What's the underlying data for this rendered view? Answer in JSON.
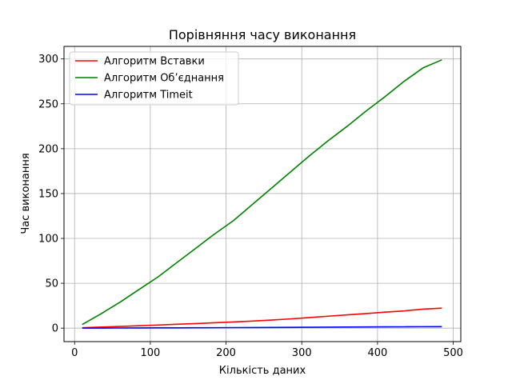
{
  "chart_data": {
    "type": "line",
    "title": "Порівняння часу виконання",
    "xlabel": "Кількість даних",
    "ylabel": "Час виконання",
    "xlim": [
      -14,
      510
    ],
    "ylim": [
      -15,
      314
    ],
    "xticks": [
      0,
      100,
      200,
      300,
      400,
      500
    ],
    "yticks": [
      0,
      50,
      100,
      150,
      200,
      250,
      300
    ],
    "grid": true,
    "legend_position": "top-left",
    "x": [
      10,
      35,
      60,
      85,
      110,
      135,
      160,
      185,
      210,
      235,
      260,
      285,
      310,
      335,
      360,
      385,
      410,
      435,
      460,
      485
    ],
    "series": [
      {
        "name": "Алгоритм Вставки",
        "color": "#ff0000",
        "values": [
          0.5,
          1.2,
          1.9,
          2.7,
          3.5,
          4.3,
          5.1,
          6.0,
          6.9,
          7.9,
          9.0,
          10.3,
          11.8,
          13.3,
          14.8,
          16.3,
          17.8,
          19.2,
          21.2,
          22.3
        ]
      },
      {
        "name": "Алгоритм Об’єднання",
        "color": "#008000",
        "values": [
          4,
          16,
          29,
          43,
          57,
          73,
          89,
          105,
          120,
          138,
          156,
          174,
          192,
          209,
          225,
          242,
          258,
          275,
          290,
          299
        ]
      },
      {
        "name": "Алгоритм Timeit",
        "color": "#0000ff",
        "values": [
          0.05,
          0.1,
          0.15,
          0.2,
          0.3,
          0.35,
          0.4,
          0.5,
          0.6,
          0.7,
          0.8,
          0.9,
          1.0,
          1.1,
          1.2,
          1.3,
          1.4,
          1.5,
          1.6,
          1.7
        ]
      }
    ]
  }
}
